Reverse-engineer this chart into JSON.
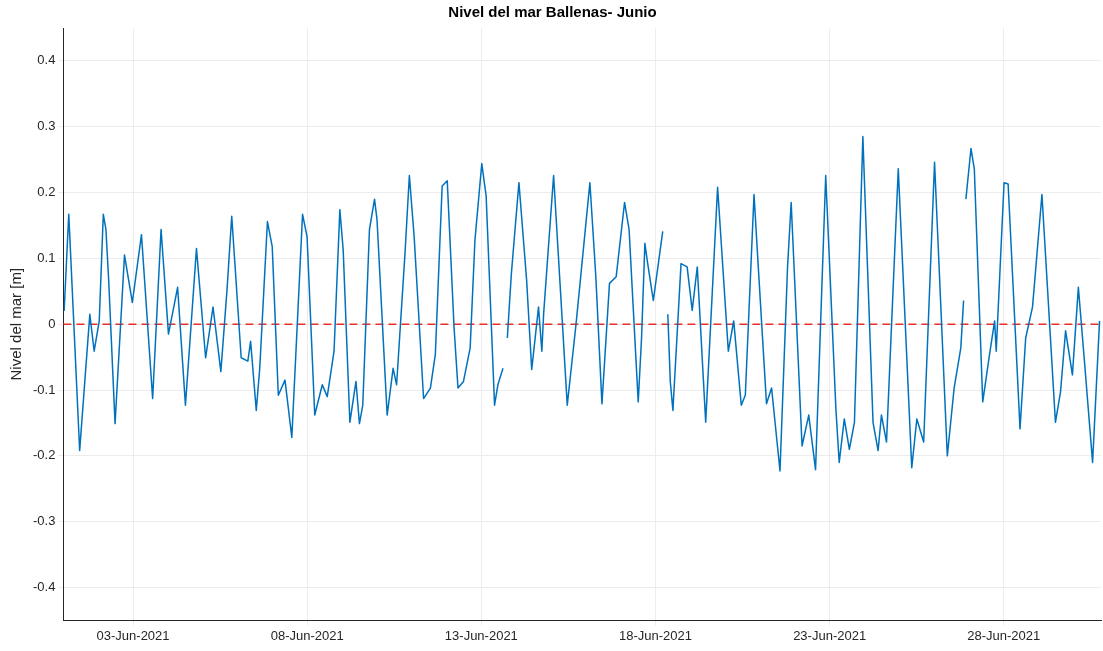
{
  "chart_data": {
    "type": "line",
    "title": "Nivel del mar Ballenas- Junio",
    "ylabel": "Nivel del mar [m]",
    "xlim": [
      "2021-06-01T00:00",
      "2021-06-30T19:00"
    ],
    "xticks": [
      {
        "value": "2021-06-03",
        "label": "03-Jun-2021"
      },
      {
        "value": "2021-06-08",
        "label": "08-Jun-2021"
      },
      {
        "value": "2021-06-13",
        "label": "13-Jun-2021"
      },
      {
        "value": "2021-06-18",
        "label": "18-Jun-2021"
      },
      {
        "value": "2021-06-23",
        "label": "23-Jun-2021"
      },
      {
        "value": "2021-06-28",
        "label": "28-Jun-2021"
      }
    ],
    "ylim": [
      -0.45,
      0.45
    ],
    "yticks": [
      -0.4,
      -0.3,
      -0.2,
      -0.1,
      0,
      0.1,
      0.2,
      0.3,
      0.4
    ],
    "grid": true,
    "legend": false,
    "marker": "none",
    "line_style": "solid",
    "ref_lines": [
      {
        "axis": "y",
        "value": 0,
        "color": "#e8302a",
        "line_style": "dashed"
      }
    ],
    "x": [
      "2021-06-01T00:30",
      "2021-06-01T03:42",
      "2021-06-01T11:12",
      "2021-06-01T18:12",
      "2021-06-01T21:12",
      "2021-06-02T00:42",
      "2021-06-02T03:30",
      "2021-06-02T05:18",
      "2021-06-02T07:12",
      "2021-06-02T11:36",
      "2021-06-02T18:06",
      "2021-06-02T23:30",
      "2021-06-03T05:48",
      "2021-06-03T13:30",
      "2021-06-03T19:18",
      "2021-06-04T00:24",
      "2021-06-04T06:42",
      "2021-06-04T12:06",
      "2021-06-04T19:42",
      "2021-06-05T02:00",
      "2021-06-05T07:06",
      "2021-06-05T12:30",
      "2021-06-05T16:42",
      "2021-06-05T20:00",
      "2021-06-06T02:30",
      "2021-06-06T07:06",
      "2021-06-06T09:00",
      "2021-06-06T12:54",
      "2021-06-06T15:18",
      "2021-06-06T20:36",
      "2021-06-06T23:54",
      "2021-06-07T04:06",
      "2021-06-07T08:42",
      "2021-06-07T13:24",
      "2021-06-07T20:48",
      "2021-06-07T23:54",
      "2021-06-08T05:12",
      "2021-06-08T10:24",
      "2021-06-08T13:48",
      "2021-06-08T18:30",
      "2021-06-08T22:30",
      "2021-06-09T00:48",
      "2021-06-09T05:24",
      "2021-06-09T09:36",
      "2021-06-09T12:00",
      "2021-06-09T14:18",
      "2021-06-09T18:54",
      "2021-06-09T22:24",
      "2021-06-10T00:06",
      "2021-06-10T07:06",
      "2021-06-10T11:12",
      "2021-06-10T13:36",
      "2021-06-10T19:24",
      "2021-06-10T22:24",
      "2021-06-11T01:42",
      "2021-06-11T08:12",
      "2021-06-11T12:54",
      "2021-06-11T16:18",
      "2021-06-11T21:00",
      "2021-06-12T00:30",
      "2021-06-12T05:12",
      "2021-06-12T07:54",
      "2021-06-12T11:42",
      "2021-06-12T16:18",
      "2021-06-12T19:36",
      "2021-06-13T00:18",
      "2021-06-13T03:18",
      "2021-06-13T09:06",
      "2021-06-13T11:24",
      "2021-06-13T14:54",
      "2021-06-13T16:30",
      "2021-06-13T17:54",
      "2021-06-13T20:42",
      "2021-06-14T01:54",
      "2021-06-14T07:12",
      "2021-06-14T10:42",
      "2021-06-14T15:24",
      "2021-06-14T17:42",
      "2021-06-14T18:54",
      "2021-06-15T01:48",
      "2021-06-15T11:12",
      "2021-06-15T17:00",
      "2021-06-15T19:18",
      "2021-06-16T02:48",
      "2021-06-16T06:54",
      "2021-06-16T11:06",
      "2021-06-16T16:18",
      "2021-06-16T20:54",
      "2021-06-17T02:42",
      "2021-06-17T05:48",
      "2021-06-17T12:06",
      "2021-06-17T14:24",
      "2021-06-17T16:42",
      "2021-06-17T18:18",
      "2021-06-17T22:30",
      "2021-06-18T05:00",
      "2021-06-18T06:30",
      "2021-06-18T08:30",
      "2021-06-18T10:12",
      "2021-06-18T12:00",
      "2021-06-18T17:36",
      "2021-06-18T21:48",
      "2021-06-19T01:18",
      "2021-06-19T04:48",
      "2021-06-19T10:36",
      "2021-06-19T18:48",
      "2021-06-20T02:12",
      "2021-06-20T05:54",
      "2021-06-20T11:06",
      "2021-06-20T13:54",
      "2021-06-20T19:54",
      "2021-06-20T22:42",
      "2021-06-21T04:30",
      "2021-06-21T08:00",
      "2021-06-21T13:48",
      "2021-06-21T19:00",
      "2021-06-21T21:30",
      "2021-06-22T05:00",
      "2021-06-22T09:36",
      "2021-06-22T14:18",
      "2021-06-22T21:18",
      "2021-06-23T04:18",
      "2021-06-23T06:36",
      "2021-06-23T10:06",
      "2021-06-23T13:36",
      "2021-06-23T17:06",
      "2021-06-23T22:54",
      "2021-06-24T05:54",
      "2021-06-24T09:24",
      "2021-06-24T11:42",
      "2021-06-24T15:12",
      "2021-06-24T23:18",
      "2021-06-25T08:36",
      "2021-06-25T12:06",
      "2021-06-25T16:48",
      "2021-06-26T00:18",
      "2021-06-26T09:06",
      "2021-06-26T13:48",
      "2021-06-26T18:24",
      "2021-06-26T20:18",
      "2021-06-26T21:06",
      "2021-06-26T21:54",
      "2021-06-27T01:24",
      "2021-06-27T03:42",
      "2021-06-27T09:30",
      "2021-06-27T14:12",
      "2021-06-27T17:42",
      "2021-06-27T18:48",
      "2021-06-28T00:12",
      "2021-06-28T03:00",
      "2021-06-28T11:12",
      "2021-06-28T15:06",
      "2021-06-28T19:48",
      "2021-06-29T02:18",
      "2021-06-29T11:36",
      "2021-06-29T15:06",
      "2021-06-29T18:36",
      "2021-06-29T23:18",
      "2021-06-30T03:24",
      "2021-06-30T07:24",
      "2021-06-30T13:12",
      "2021-06-30T18:00"
    ],
    "series": [
      {
        "color": "#0072bd",
        "values": [
          0.02,
          0.167,
          -0.192,
          0.015,
          -0.041,
          0.005,
          0.167,
          0.144,
          0.067,
          -0.151,
          0.105,
          0.033,
          0.136,
          -0.113,
          0.144,
          -0.015,
          0.056,
          -0.123,
          0.115,
          -0.051,
          0.026,
          -0.072,
          0.051,
          0.164,
          -0.051,
          -0.056,
          -0.026,
          -0.131,
          -0.067,
          0.156,
          0.118,
          -0.108,
          -0.085,
          -0.172,
          0.167,
          0.133,
          -0.138,
          -0.092,
          -0.11,
          -0.041,
          0.174,
          0.113,
          -0.149,
          -0.087,
          -0.151,
          -0.123,
          0.144,
          0.19,
          0.159,
          -0.138,
          -0.067,
          -0.092,
          0.108,
          0.226,
          0.133,
          -0.113,
          -0.097,
          -0.046,
          0.21,
          0.218,
          -0.005,
          -0.097,
          -0.087,
          -0.036,
          0.128,
          0.244,
          0.195,
          -0.123,
          -0.092,
          -0.067,
          null,
          -0.021,
          0.077,
          0.215,
          0.067,
          -0.069,
          0.026,
          -0.041,
          0.015,
          0.226,
          -0.123,
          -0.005,
          0.046,
          0.215,
          0.072,
          -0.121,
          0.062,
          0.072,
          0.185,
          0.144,
          -0.118,
          -0.021,
          0.123,
          0.097,
          0.036,
          0.141,
          null,
          0.015,
          -0.087,
          -0.131,
          0.092,
          0.087,
          0.021,
          0.087,
          -0.149,
          0.208,
          -0.041,
          0.005,
          -0.123,
          -0.108,
          0.197,
          0.092,
          -0.121,
          -0.097,
          -0.223,
          0.087,
          0.185,
          -0.185,
          -0.138,
          -0.221,
          0.226,
          -0.128,
          -0.21,
          -0.144,
          -0.19,
          -0.149,
          0.285,
          -0.149,
          -0.192,
          -0.138,
          -0.179,
          0.236,
          -0.218,
          -0.144,
          -0.179,
          0.246,
          -0.2,
          -0.097,
          -0.036,
          0.036,
          null,
          0.19,
          0.267,
          0.236,
          -0.118,
          -0.046,
          0.005,
          -0.041,
          0.215,
          0.213,
          -0.159,
          -0.021,
          0.026,
          0.197,
          -0.149,
          -0.103,
          -0.01,
          -0.077,
          0.056,
          -0.051,
          -0.21,
          0.005
        ]
      }
    ]
  }
}
